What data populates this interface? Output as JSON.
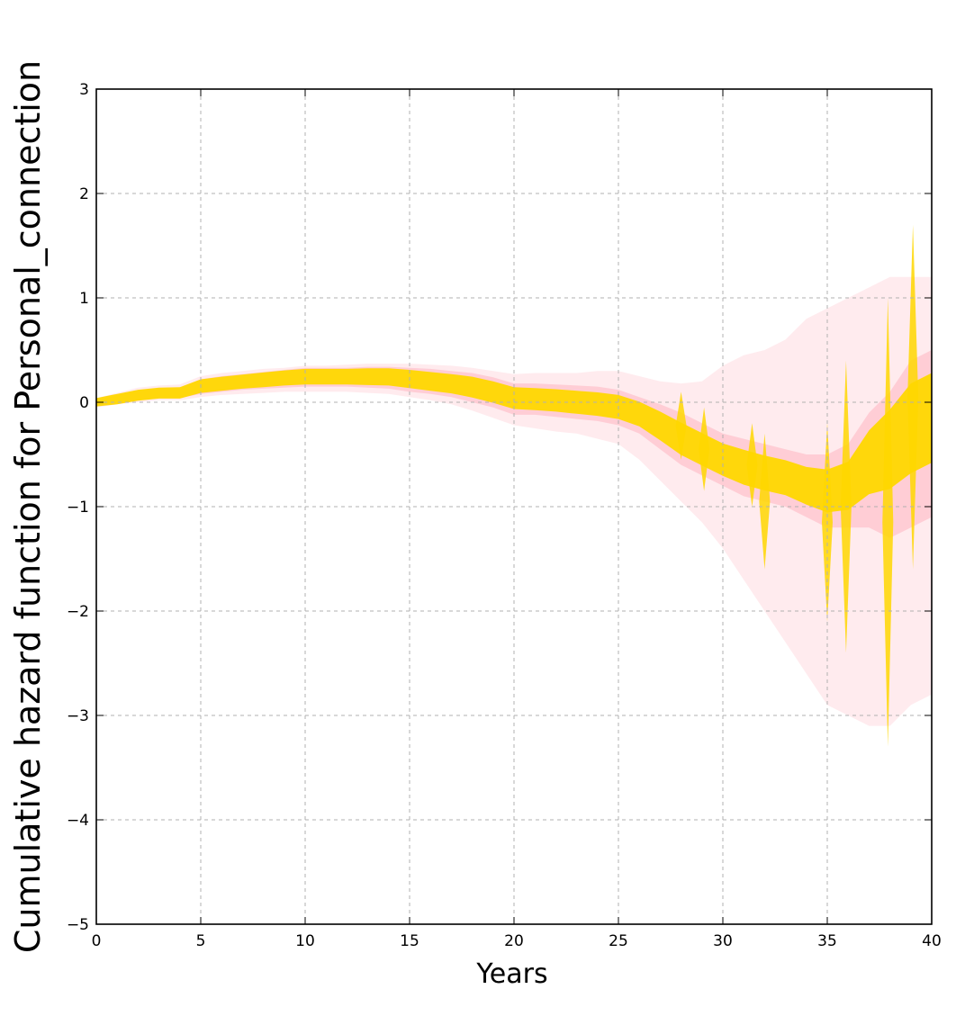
{
  "chart_data": {
    "type": "area",
    "title": "",
    "xlabel": "Years",
    "ylabel": "Cumulative hazard function for Personal_connection",
    "xlim": [
      0,
      40
    ],
    "ylim": [
      -5,
      3
    ],
    "xticks": [
      0,
      5,
      10,
      15,
      20,
      25,
      30,
      35,
      40
    ],
    "yticks": [
      3,
      2,
      1,
      0,
      -1,
      -2,
      -3,
      -4,
      -5
    ],
    "xtick_labels": [
      "0",
      "5",
      "10",
      "15",
      "20",
      "25",
      "30",
      "35",
      "40"
    ],
    "ytick_labels": [
      "3",
      "2",
      "1",
      "0",
      "−1",
      "−2",
      "−3",
      "−4",
      "−5"
    ],
    "grid": true,
    "legend": false,
    "colors": {
      "posterior_band": "#FFD700",
      "outer_band": "#FFC0CB",
      "grid": "#b0b0b0",
      "axis": "#000000"
    },
    "series": [
      {
        "x": [
          0,
          1,
          2,
          3,
          4,
          5,
          6,
          7,
          8,
          9,
          10,
          11,
          12,
          13,
          14,
          15,
          16,
          17,
          18,
          19,
          20,
          21,
          22,
          23,
          24,
          25,
          26,
          27,
          28,
          29,
          30,
          31,
          32,
          33,
          34,
          35,
          36,
          37,
          38,
          39,
          40
        ],
        "central": [
          0.0,
          0.03,
          0.07,
          0.09,
          0.09,
          0.16,
          0.18,
          0.2,
          0.22,
          0.24,
          0.25,
          0.25,
          0.25,
          0.25,
          0.25,
          0.23,
          0.2,
          0.18,
          0.15,
          0.1,
          0.05,
          0.03,
          0.02,
          0.0,
          -0.02,
          -0.04,
          -0.1,
          -0.22,
          -0.35,
          -0.45,
          -0.55,
          -0.62,
          -0.68,
          -0.72,
          -0.8,
          -0.85,
          -0.8,
          -0.5,
          -0.3,
          -0.1,
          0.0
        ],
        "inner_lower": [
          -0.02,
          -0.01,
          0.02,
          0.04,
          0.04,
          0.08,
          0.1,
          0.12,
          0.13,
          0.14,
          0.15,
          0.15,
          0.15,
          0.14,
          0.13,
          0.1,
          0.08,
          0.05,
          0.0,
          -0.05,
          -0.12,
          -0.12,
          -0.14,
          -0.16,
          -0.18,
          -0.22,
          -0.3,
          -0.45,
          -0.6,
          -0.7,
          -0.8,
          -0.9,
          -0.95,
          -1.0,
          -1.1,
          -1.2,
          -1.2,
          -1.2,
          -1.3,
          -1.2,
          -1.1
        ],
        "inner_upper": [
          0.02,
          0.07,
          0.11,
          0.13,
          0.14,
          0.22,
          0.25,
          0.27,
          0.29,
          0.31,
          0.33,
          0.33,
          0.33,
          0.34,
          0.34,
          0.33,
          0.32,
          0.3,
          0.28,
          0.24,
          0.18,
          0.18,
          0.17,
          0.16,
          0.15,
          0.12,
          0.05,
          -0.02,
          -0.1,
          -0.2,
          -0.3,
          -0.35,
          -0.4,
          -0.45,
          -0.5,
          -0.5,
          -0.4,
          -0.1,
          0.1,
          0.4,
          0.5
        ],
        "outer_lower": [
          -0.05,
          -0.02,
          0.0,
          0.02,
          0.02,
          0.05,
          0.07,
          0.08,
          0.09,
          0.1,
          0.1,
          0.1,
          0.1,
          0.09,
          0.08,
          0.05,
          0.02,
          -0.02,
          -0.08,
          -0.15,
          -0.22,
          -0.25,
          -0.28,
          -0.3,
          -0.35,
          -0.4,
          -0.55,
          -0.75,
          -0.95,
          -1.15,
          -1.4,
          -1.7,
          -2.0,
          -2.3,
          -2.6,
          -2.9,
          -3.0,
          -3.1,
          -3.1,
          -2.9,
          -2.8
        ],
        "outer_upper": [
          0.04,
          0.09,
          0.14,
          0.16,
          0.17,
          0.25,
          0.28,
          0.3,
          0.32,
          0.33,
          0.35,
          0.35,
          0.36,
          0.37,
          0.37,
          0.37,
          0.36,
          0.35,
          0.33,
          0.3,
          0.27,
          0.28,
          0.28,
          0.28,
          0.3,
          0.3,
          0.25,
          0.2,
          0.18,
          0.2,
          0.35,
          0.45,
          0.5,
          0.6,
          0.8,
          0.9,
          1.0,
          1.1,
          1.2,
          1.2,
          1.2
        ]
      }
    ],
    "spikes": [
      {
        "x": 28.0,
        "low": -0.55,
        "high": 0.1
      },
      {
        "x": 29.1,
        "low": -0.85,
        "high": -0.05
      },
      {
        "x": 31.4,
        "low": -1.0,
        "high": -0.2
      },
      {
        "x": 32.0,
        "low": -1.6,
        "high": -0.3
      },
      {
        "x": 35.0,
        "low": -2.1,
        "high": -0.2
      },
      {
        "x": 35.9,
        "low": -2.4,
        "high": 0.4
      },
      {
        "x": 37.9,
        "low": -3.3,
        "high": 1.0
      },
      {
        "x": 39.1,
        "low": -1.6,
        "high": 1.7
      }
    ]
  }
}
